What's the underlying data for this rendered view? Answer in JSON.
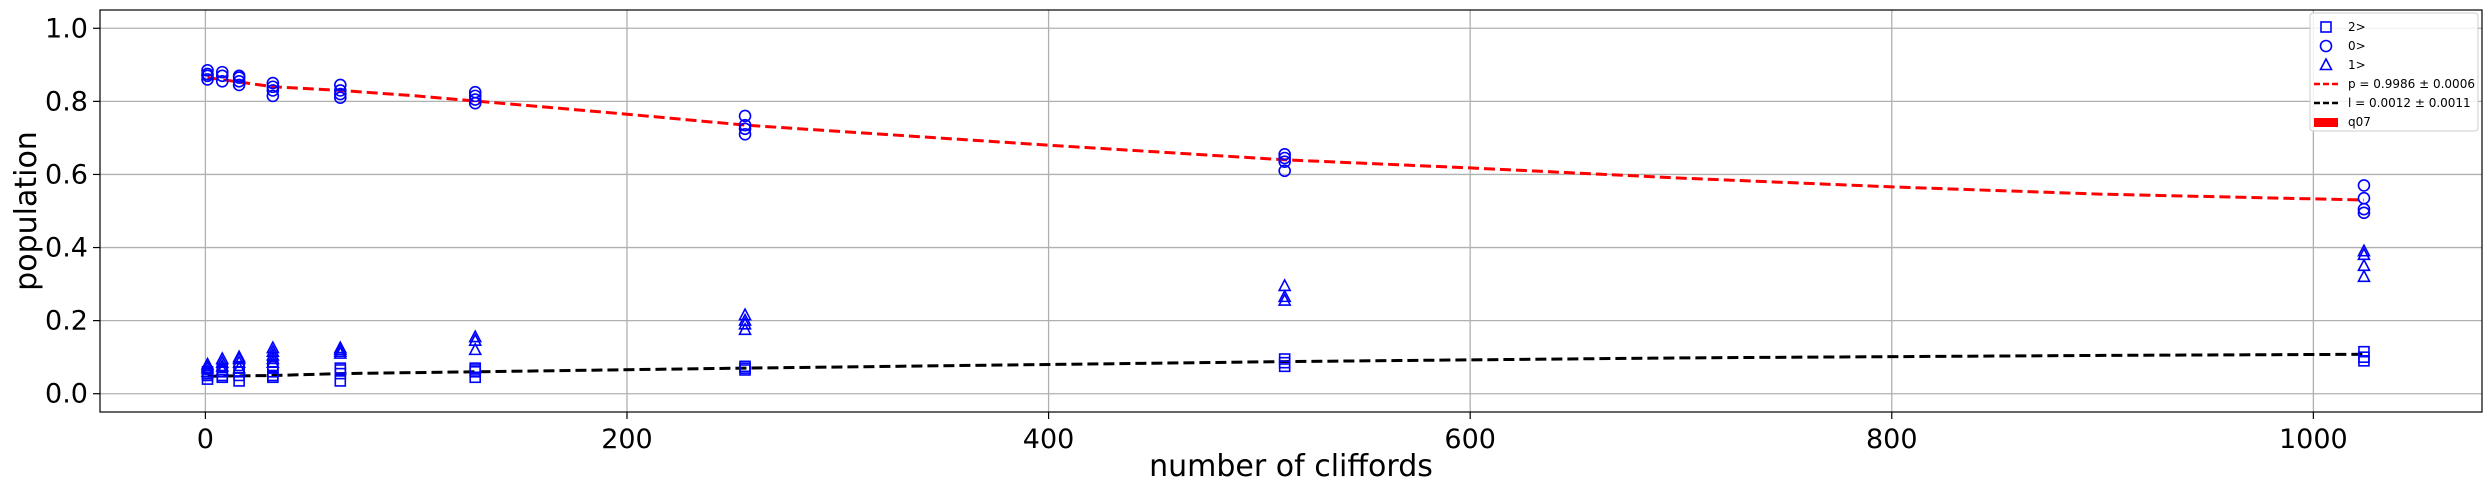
{
  "chart_data": {
    "type": "scatter",
    "xlabel": "number of cliffords",
    "ylabel": "population",
    "xlim": [
      -50,
      1080
    ],
    "ylim": [
      -0.05,
      1.05
    ],
    "xticks": [
      0,
      200,
      400,
      600,
      800,
      1000
    ],
    "xtick_labels": [
      "0",
      "200",
      "400",
      "600",
      "800",
      "1000"
    ],
    "yticks": [
      0.0,
      0.2,
      0.4,
      0.6,
      0.8,
      1.0
    ],
    "ytick_labels": [
      "0.0",
      "0.2",
      "0.4",
      "0.6",
      "0.8",
      "1.0"
    ],
    "grid": true,
    "legend_position": "top-right",
    "legend": [
      "2>",
      "0>",
      "1>",
      "p = 0.9986 ± 0.0006",
      "l = 0.0012 ± 0.0011",
      "q07"
    ],
    "series": [
      {
        "name": "2>",
        "marker": "square",
        "color": "#0000ff",
        "x": [
          1,
          1,
          1,
          1,
          8,
          8,
          8,
          8,
          16,
          16,
          16,
          16,
          32,
          32,
          32,
          32,
          32,
          64,
          64,
          64,
          64,
          128,
          128,
          128,
          128,
          256,
          256,
          256,
          512,
          512,
          512,
          1024,
          1024,
          1024
        ],
        "y": [
          0.04,
          0.05,
          0.055,
          0.06,
          0.045,
          0.05,
          0.06,
          0.065,
          0.035,
          0.05,
          0.06,
          0.07,
          0.045,
          0.05,
          0.06,
          0.07,
          0.075,
          0.035,
          0.055,
          0.065,
          0.07,
          0.045,
          0.06,
          0.065,
          0.07,
          0.065,
          0.07,
          0.075,
          0.075,
          0.085,
          0.095,
          0.09,
          0.1,
          0.115
        ]
      },
      {
        "name": "0>",
        "marker": "circle",
        "color": "#0000ff",
        "x": [
          1,
          1,
          1,
          1,
          8,
          8,
          8,
          16,
          16,
          16,
          16,
          32,
          32,
          32,
          32,
          64,
          64,
          64,
          64,
          128,
          128,
          128,
          128,
          256,
          256,
          256,
          256,
          512,
          512,
          512,
          512,
          1024,
          1024,
          1024,
          1024
        ],
        "y": [
          0.86,
          0.87,
          0.875,
          0.885,
          0.855,
          0.87,
          0.88,
          0.845,
          0.855,
          0.865,
          0.87,
          0.815,
          0.83,
          0.84,
          0.85,
          0.81,
          0.82,
          0.83,
          0.845,
          0.795,
          0.805,
          0.815,
          0.825,
          0.71,
          0.725,
          0.735,
          0.76,
          0.61,
          0.635,
          0.645,
          0.655,
          0.495,
          0.505,
          0.535,
          0.57
        ]
      },
      {
        "name": "1>",
        "marker": "triangle",
        "color": "#0000ff",
        "x": [
          1,
          1,
          1,
          1,
          8,
          8,
          8,
          8,
          16,
          16,
          16,
          16,
          32,
          32,
          32,
          32,
          32,
          64,
          64,
          64,
          64,
          128,
          128,
          128,
          256,
          256,
          256,
          256,
          512,
          512,
          512,
          1024,
          1024,
          1024,
          1024
        ],
        "y": [
          0.06,
          0.07,
          0.075,
          0.08,
          0.065,
          0.075,
          0.085,
          0.095,
          0.07,
          0.085,
          0.095,
          0.1,
          0.085,
          0.095,
          0.105,
          0.115,
          0.125,
          0.11,
          0.115,
          0.12,
          0.125,
          0.12,
          0.145,
          0.155,
          0.175,
          0.19,
          0.2,
          0.215,
          0.255,
          0.265,
          0.295,
          0.32,
          0.35,
          0.38,
          0.39
        ]
      }
    ],
    "fits": [
      {
        "name": "p = 0.9986 ± 0.0006",
        "color": "#ff0000",
        "x": [
          1,
          32,
          64,
          100,
          150,
          200,
          256,
          300,
          400,
          512,
          600,
          700,
          800,
          900,
          1024
        ],
        "y": [
          0.865,
          0.84,
          0.83,
          0.815,
          0.79,
          0.765,
          0.735,
          0.718,
          0.68,
          0.64,
          0.618,
          0.59,
          0.566,
          0.546,
          0.53
        ]
      },
      {
        "name": "l = 0.0012 ± 0.0011",
        "color": "#000000",
        "x": [
          1,
          32,
          64,
          128,
          256,
          400,
          512,
          700,
          900,
          1024
        ],
        "y": [
          0.048,
          0.05,
          0.055,
          0.06,
          0.07,
          0.08,
          0.088,
          0.098,
          0.105,
          0.108
        ]
      }
    ],
    "patch": {
      "name": "q07",
      "color": "#ff0000"
    }
  }
}
